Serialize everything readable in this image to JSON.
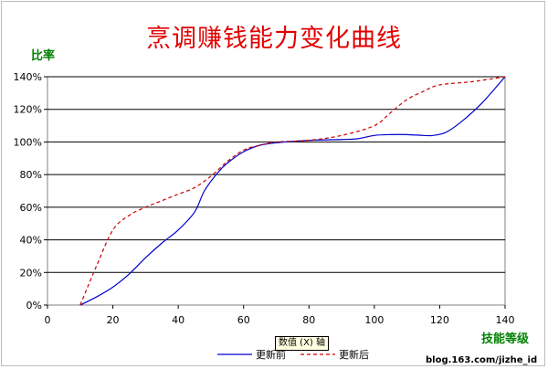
{
  "chart_data": {
    "type": "line",
    "title": "烹调赚钱能力变化曲线",
    "ylabel": "比率",
    "xlabel": "技能等级",
    "xlim": [
      0,
      140
    ],
    "ylim": [
      0,
      140
    ],
    "x_ticks": [
      0,
      20,
      40,
      60,
      80,
      100,
      120,
      140
    ],
    "y_ticks": [
      0,
      20,
      40,
      60,
      80,
      100,
      120,
      140
    ],
    "y_tick_suffix": "%",
    "grid": "horizontal",
    "legend_position": "bottom",
    "series": [
      {
        "name": "更新前",
        "color": "#0000cc",
        "style": "solid",
        "points": [
          [
            10,
            0
          ],
          [
            15,
            5
          ],
          [
            20,
            11
          ],
          [
            25,
            19
          ],
          [
            30,
            29
          ],
          [
            35,
            38
          ],
          [
            40,
            46
          ],
          [
            45,
            57
          ],
          [
            48,
            70
          ],
          [
            52,
            81
          ],
          [
            55,
            87
          ],
          [
            60,
            94
          ],
          [
            65,
            98
          ],
          [
            70,
            99.5
          ],
          [
            80,
            101
          ],
          [
            90,
            101.5
          ],
          [
            95,
            102
          ],
          [
            100,
            104
          ],
          [
            105,
            104.5
          ],
          [
            110,
            104.5
          ],
          [
            115,
            104
          ],
          [
            118,
            104
          ],
          [
            122,
            106
          ],
          [
            127,
            113
          ],
          [
            133,
            124
          ],
          [
            140,
            140
          ]
        ]
      },
      {
        "name": "更新后",
        "color": "#cc0000",
        "style": "dashed",
        "points": [
          [
            10,
            0
          ],
          [
            15,
            24
          ],
          [
            20,
            46
          ],
          [
            25,
            55
          ],
          [
            30,
            60
          ],
          [
            35,
            64
          ],
          [
            40,
            68
          ],
          [
            45,
            72
          ],
          [
            50,
            79
          ],
          [
            55,
            88
          ],
          [
            60,
            95
          ],
          [
            65,
            98
          ],
          [
            70,
            100
          ],
          [
            80,
            101
          ],
          [
            90,
            104
          ],
          [
            100,
            110
          ],
          [
            105,
            118
          ],
          [
            110,
            126
          ],
          [
            115,
            131
          ],
          [
            120,
            135
          ],
          [
            130,
            137
          ],
          [
            140,
            140
          ]
        ]
      }
    ]
  },
  "axis_tooltip": "数值 (X) 轴",
  "watermark": "blog.163.com/jizhe_id"
}
